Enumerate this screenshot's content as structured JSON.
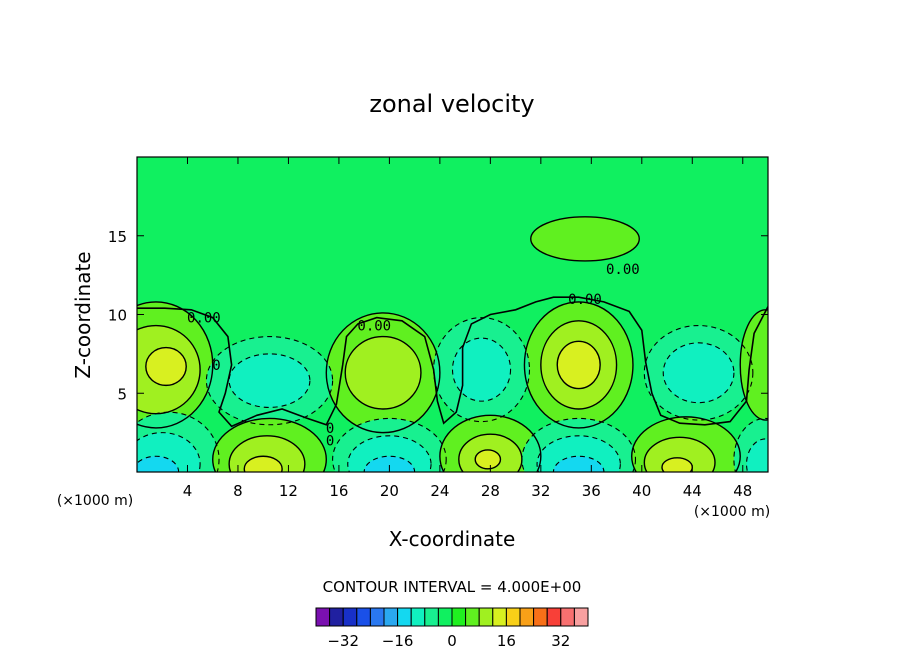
{
  "chart_data": {
    "type": "contour",
    "title": "zonal velocity",
    "xlabel": "X-coordinate",
    "ylabel": "Z-coordinate",
    "x_unit_left": "(×1000 m)",
    "x_unit_right": "(×1000 m)",
    "xlim": [
      0,
      50
    ],
    "ylim": [
      0,
      20
    ],
    "x_ticks": [
      "4",
      "8",
      "12",
      "16",
      "20",
      "24",
      "28",
      "32",
      "36",
      "40",
      "44",
      "48"
    ],
    "y_ticks": [
      "5",
      "10",
      "15"
    ],
    "x_tick_values": [
      4,
      8,
      12,
      16,
      20,
      24,
      28,
      32,
      36,
      40,
      44,
      48
    ],
    "y_tick_values": [
      5,
      10,
      15
    ],
    "contour_interval_text": "CONTOUR INTERVAL = 4.000E+00",
    "contour_interval": 4,
    "colorbar": {
      "levels": [
        -36,
        -32,
        -28,
        -24,
        -20,
        -16,
        -12,
        -8,
        -4,
        0,
        4,
        8,
        12,
        16,
        20,
        24,
        28,
        32,
        36
      ],
      "colors": [
        "#7a10b0",
        "#2020a0",
        "#1830c8",
        "#1a50e8",
        "#2a78f0",
        "#2aa8f0",
        "#14d8f0",
        "#10f0c0",
        "#18f090",
        "#10f060",
        "#20f020",
        "#60f020",
        "#a0f020",
        "#d8f020",
        "#f8d018",
        "#f8a018",
        "#f87018",
        "#f84038",
        "#f87070",
        "#f8a0a0"
      ],
      "tick_labels": [
        "-32",
        "-16",
        "0",
        "16",
        "32"
      ],
      "tick_values": [
        -32,
        -16,
        0,
        16,
        32
      ]
    },
    "contour_labels": [
      {
        "text": "0.00",
        "x": 5.3,
        "z": 9.8
      },
      {
        "text": "0.00",
        "x": 18.8,
        "z": 9.3
      },
      {
        "text": "0.00",
        "x": 35.5,
        "z": 11.0
      },
      {
        "text": "0.00",
        "x": 38.5,
        "z": 12.9
      },
      {
        "text": "0",
        "x": 6.3,
        "z": 6.8
      },
      {
        "text": "0",
        "x": 15.3,
        "z": 2.8
      },
      {
        "text": "0",
        "x": 15.3,
        "z": 2.0
      }
    ],
    "regions": [
      {
        "kind": "background",
        "value": 0,
        "color": "#10f060"
      },
      {
        "kind": "positive",
        "value": 4,
        "cx": 1.5,
        "cz": 6.8,
        "rx": 4.5,
        "rz": 4.0,
        "color": "#60f020"
      },
      {
        "kind": "positive",
        "value": 8,
        "cx": 1.5,
        "cz": 6.5,
        "rx": 3.5,
        "rz": 2.8,
        "color": "#a0f020"
      },
      {
        "kind": "positive",
        "value": 12,
        "cx": 2.3,
        "cz": 6.7,
        "rx": 1.6,
        "rz": 1.2,
        "color": "#d8f020"
      },
      {
        "kind": "positive",
        "value": 4,
        "cx": 19.5,
        "cz": 6.3,
        "rx": 4.5,
        "rz": 3.8,
        "color": "#60f020"
      },
      {
        "kind": "positive",
        "value": 8,
        "cx": 19.5,
        "cz": 6.3,
        "rx": 3.0,
        "rz": 2.3,
        "color": "#a0f020"
      },
      {
        "kind": "positive",
        "value": 4,
        "cx": 35.0,
        "cz": 6.8,
        "rx": 4.3,
        "rz": 4.0,
        "color": "#60f020"
      },
      {
        "kind": "positive",
        "value": 8,
        "cx": 35.0,
        "cz": 6.8,
        "rx": 3.0,
        "rz": 2.8,
        "color": "#a0f020"
      },
      {
        "kind": "positive",
        "value": 12,
        "cx": 35.0,
        "cz": 6.8,
        "rx": 1.7,
        "rz": 1.5,
        "color": "#d8f020"
      },
      {
        "kind": "positive",
        "value": 4,
        "cx": 35.5,
        "cz": 14.8,
        "rx": 4.3,
        "rz": 1.4,
        "color": "#60f020"
      },
      {
        "kind": "negative",
        "value": -4,
        "cx": 10.5,
        "cz": 5.8,
        "rx": 5.0,
        "rz": 2.8,
        "color": "#18f090"
      },
      {
        "kind": "negative",
        "value": -8,
        "cx": 10.5,
        "cz": 5.8,
        "rx": 3.2,
        "rz": 1.7,
        "color": "#10f0c0"
      },
      {
        "kind": "negative",
        "value": -4,
        "cx": 27.3,
        "cz": 6.5,
        "rx": 3.8,
        "rz": 3.3,
        "color": "#18f090"
      },
      {
        "kind": "negative",
        "value": -8,
        "cx": 27.3,
        "cz": 6.5,
        "rx": 2.3,
        "rz": 2.0,
        "color": "#10f0c0"
      },
      {
        "kind": "negative",
        "value": -4,
        "cx": 44.5,
        "cz": 6.3,
        "rx": 4.3,
        "rz": 3.0,
        "color": "#18f090"
      },
      {
        "kind": "negative",
        "value": -8,
        "cx": 44.5,
        "cz": 6.3,
        "rx": 2.8,
        "rz": 1.9,
        "color": "#10f0c0"
      },
      {
        "kind": "positive",
        "value": 4,
        "cx": 49.8,
        "cz": 6.8,
        "rx": 2.0,
        "rz": 3.5,
        "color": "#60f020"
      },
      {
        "kind": "negative",
        "value": -4,
        "cx": 2.5,
        "cz": 0.8,
        "rx": 4.0,
        "rz": 3.0,
        "color": "#18f090"
      },
      {
        "kind": "negative",
        "value": -8,
        "cx": 2.0,
        "cz": 0.5,
        "rx": 3.0,
        "rz": 2.0,
        "color": "#10f0c0"
      },
      {
        "kind": "negative",
        "value": -12,
        "cx": 1.5,
        "cz": 0.0,
        "rx": 1.8,
        "rz": 1.0,
        "color": "#14d8f0"
      },
      {
        "kind": "positive",
        "value": 4,
        "cx": 10.5,
        "cz": 0.8,
        "rx": 4.5,
        "rz": 2.6,
        "color": "#60f020"
      },
      {
        "kind": "positive",
        "value": 8,
        "cx": 10.3,
        "cz": 0.5,
        "rx": 3.0,
        "rz": 1.8,
        "color": "#a0f020"
      },
      {
        "kind": "positive",
        "value": 12,
        "cx": 10.0,
        "cz": 0.2,
        "rx": 1.5,
        "rz": 0.8,
        "color": "#d8f020"
      },
      {
        "kind": "negative",
        "value": -4,
        "cx": 20.0,
        "cz": 0.8,
        "rx": 4.5,
        "rz": 2.6,
        "color": "#18f090"
      },
      {
        "kind": "negative",
        "value": -8,
        "cx": 20.0,
        "cz": 0.5,
        "rx": 3.3,
        "rz": 1.8,
        "color": "#10f0c0"
      },
      {
        "kind": "negative",
        "value": -12,
        "cx": 20.0,
        "cz": 0.0,
        "rx": 2.0,
        "rz": 1.0,
        "color": "#14d8f0"
      },
      {
        "kind": "positive",
        "value": 4,
        "cx": 28.0,
        "cz": 1.0,
        "rx": 4.0,
        "rz": 2.6,
        "color": "#60f020"
      },
      {
        "kind": "positive",
        "value": 8,
        "cx": 28.0,
        "cz": 0.8,
        "rx": 2.5,
        "rz": 1.6,
        "color": "#a0f020"
      },
      {
        "kind": "positive",
        "value": 12,
        "cx": 27.8,
        "cz": 0.8,
        "rx": 1.0,
        "rz": 0.6,
        "color": "#d8f020"
      },
      {
        "kind": "negative",
        "value": -4,
        "cx": 35.0,
        "cz": 0.8,
        "rx": 4.5,
        "rz": 2.6,
        "color": "#18f090"
      },
      {
        "kind": "negative",
        "value": -8,
        "cx": 35.0,
        "cz": 0.5,
        "rx": 3.3,
        "rz": 1.8,
        "color": "#10f0c0"
      },
      {
        "kind": "negative",
        "value": -12,
        "cx": 35.0,
        "cz": 0.0,
        "rx": 2.0,
        "rz": 1.0,
        "color": "#14d8f0"
      },
      {
        "kind": "positive",
        "value": 4,
        "cx": 43.5,
        "cz": 1.0,
        "rx": 4.3,
        "rz": 2.5,
        "color": "#60f020"
      },
      {
        "kind": "positive",
        "value": 8,
        "cx": 43.0,
        "cz": 0.6,
        "rx": 2.8,
        "rz": 1.6,
        "color": "#a0f020"
      },
      {
        "kind": "positive",
        "value": 12,
        "cx": 42.8,
        "cz": 0.3,
        "rx": 1.2,
        "rz": 0.6,
        "color": "#d8f020"
      },
      {
        "kind": "negative",
        "value": -4,
        "cx": 49.8,
        "cz": 0.8,
        "rx": 2.5,
        "rz": 2.6,
        "color": "#18f090"
      },
      {
        "kind": "negative",
        "value": -8,
        "cx": 49.8,
        "cz": 0.5,
        "rx": 1.5,
        "rz": 1.6,
        "color": "#10f0c0"
      }
    ]
  }
}
